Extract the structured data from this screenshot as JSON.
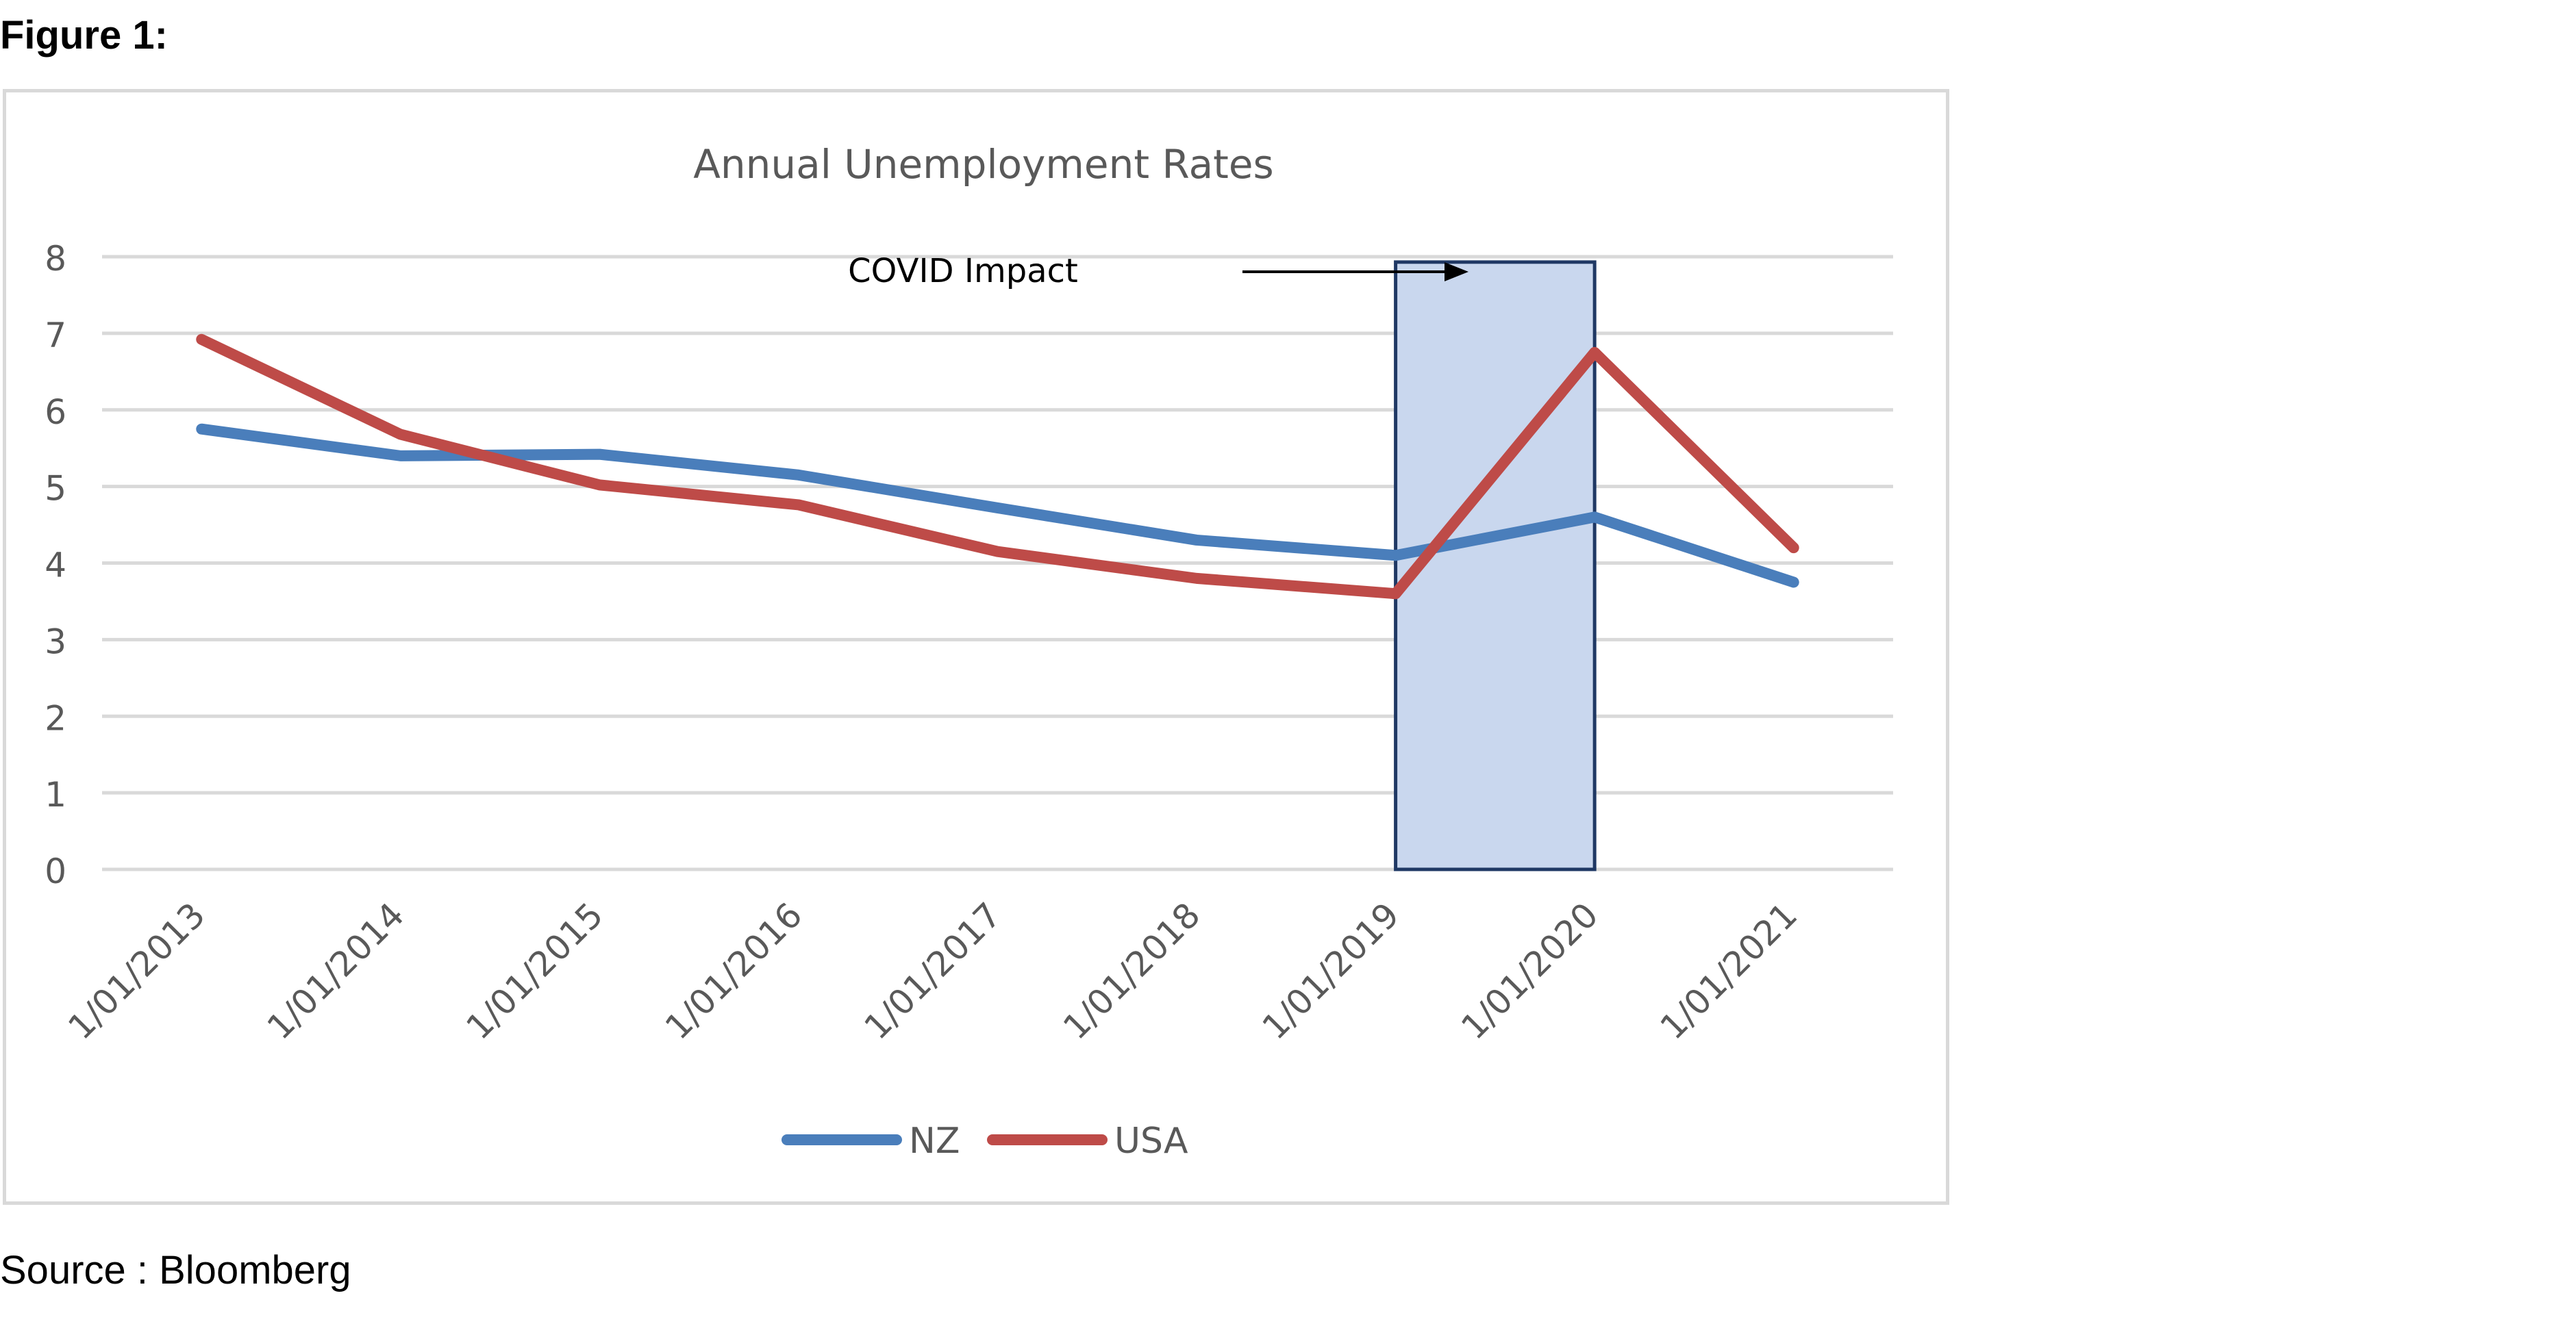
{
  "figure_label": "Figure 1:",
  "source_label": "Source : Bloomberg",
  "colors": {
    "nz": "#4a7ebb",
    "usa": "#be4b48",
    "grid": "#d9d9d9",
    "axis_text": "#595959",
    "highlight_fill": "#c9d7ee",
    "highlight_stroke": "#1f3864"
  },
  "chart_data": {
    "type": "line",
    "title": "Annual Unemployment Rates",
    "xlabel": "",
    "ylabel": "",
    "categories": [
      "1/01/2013",
      "1/01/2014",
      "1/01/2015",
      "1/01/2016",
      "1/01/2017",
      "1/01/2018",
      "1/01/2019",
      "1/01/2020",
      "1/01/2021"
    ],
    "ylim": [
      0,
      8
    ],
    "yticks": [
      "0",
      "1",
      "2",
      "3",
      "4",
      "5",
      "6",
      "7",
      "8"
    ],
    "grid": true,
    "legend_position": "bottom",
    "series": [
      {
        "name": "NZ",
        "values": [
          5.75,
          5.4,
          5.42,
          5.15,
          4.72,
          4.3,
          4.1,
          4.6,
          3.75
        ]
      },
      {
        "name": "USA",
        "values": [
          6.92,
          5.68,
          5.02,
          4.76,
          4.15,
          3.8,
          3.6,
          6.75,
          4.2
        ]
      }
    ],
    "annotations": [
      {
        "text": "COVID Impact",
        "highlight_from": "1/01/2019",
        "highlight_to": "1/01/2020"
      }
    ]
  }
}
